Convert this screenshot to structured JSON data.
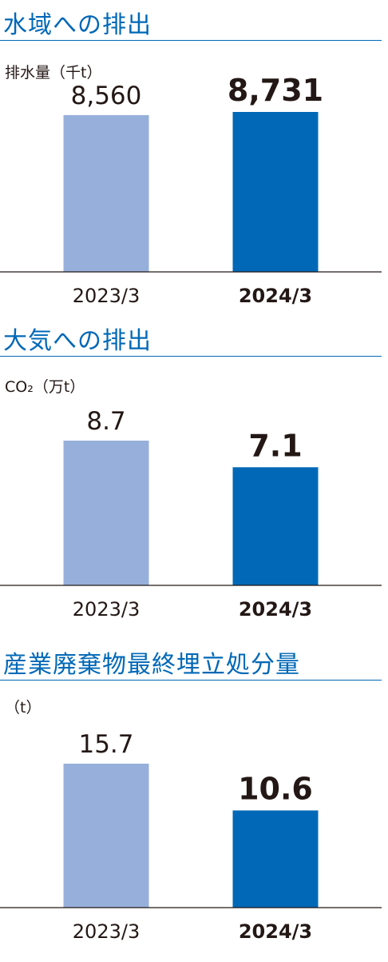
{
  "colors": {
    "previous": "#97b0db",
    "current": "#0068b7",
    "title": "#0068b7"
  },
  "chart_data": [
    {
      "type": "bar",
      "title": "水域への排出",
      "ylabel": "排水量（千t）",
      "categories": [
        "2023/3",
        "2024/3"
      ],
      "values": [
        8560,
        8731
      ],
      "value_labels": [
        "8,560",
        "8,731"
      ],
      "ylim": [
        0,
        10000
      ],
      "grid": false
    },
    {
      "type": "bar",
      "title": "大気への排出",
      "ylabel": "CO₂（万t）",
      "categories": [
        "2023/3",
        "2024/3"
      ],
      "values": [
        8.7,
        7.1
      ],
      "value_labels": [
        "8.7",
        "7.1"
      ],
      "ylim": [
        0,
        10
      ],
      "grid": false
    },
    {
      "type": "bar",
      "title": "産業廃棄物最終埋立処分量",
      "ylabel": "（t）",
      "categories": [
        "2023/3",
        "2024/3"
      ],
      "values": [
        15.7,
        10.6
      ],
      "value_labels": [
        "15.7",
        "10.6"
      ],
      "ylim": [
        0,
        20
      ],
      "grid": false
    }
  ]
}
